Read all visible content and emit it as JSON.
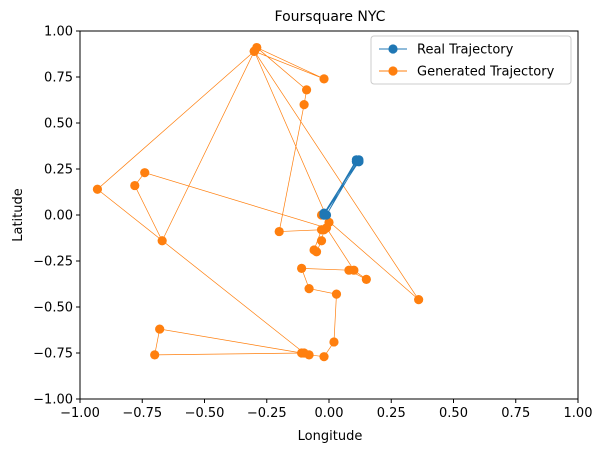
{
  "chart_data": {
    "type": "line",
    "title": "Foursquare NYC",
    "xlabel": "Longitude",
    "ylabel": "Latitude",
    "xlim": [
      -1.0,
      1.0
    ],
    "ylim": [
      -1.0,
      1.0
    ],
    "xticks": [
      "−1.00",
      "−0.75",
      "−0.50",
      "−0.25",
      "0.00",
      "0.25",
      "0.50",
      "0.75",
      "1.00"
    ],
    "yticks": [
      "−1.00",
      "−0.75",
      "−0.50",
      "−0.25",
      "0.00",
      "0.25",
      "0.50",
      "0.75",
      "1.00"
    ],
    "grid": false,
    "legend_position": "top-right",
    "series": [
      {
        "name": "Real Trajectory",
        "color": "#1f77b4",
        "points": [
          [
            -0.02,
            0.0
          ],
          [
            0.12,
            0.29
          ],
          [
            -0.02,
            0.0
          ],
          [
            0.11,
            0.29
          ],
          [
            -0.02,
            0.01
          ],
          [
            0.12,
            0.3
          ],
          [
            -0.01,
            0.0
          ],
          [
            0.11,
            0.3
          ],
          [
            -0.02,
            0.0
          ],
          [
            0.12,
            0.29
          ]
        ]
      },
      {
        "name": "Generated Trajectory",
        "color": "#ff7f0e",
        "points": [
          [
            -0.03,
            0.0
          ],
          [
            0.36,
            -0.46
          ],
          [
            -0.3,
            0.89
          ],
          [
            -0.02,
            0.74
          ],
          [
            -0.29,
            0.91
          ],
          [
            -0.09,
            0.68
          ],
          [
            -0.1,
            0.6
          ],
          [
            -0.2,
            -0.09
          ],
          [
            -0.03,
            -0.08
          ],
          [
            -0.06,
            -0.19
          ],
          [
            -0.05,
            -0.2
          ],
          [
            -0.03,
            -0.14
          ],
          [
            -0.02,
            -0.08
          ],
          [
            0.0,
            -0.04
          ],
          [
            -0.3,
            0.89
          ],
          [
            -0.67,
            -0.14
          ],
          [
            -0.78,
            0.16
          ],
          [
            -0.74,
            0.23
          ],
          [
            -0.01,
            -0.07
          ],
          [
            0.1,
            -0.3
          ],
          [
            0.15,
            -0.35
          ],
          [
            0.08,
            -0.3
          ],
          [
            -0.11,
            -0.29
          ],
          [
            -0.08,
            -0.4
          ],
          [
            0.03,
            -0.43
          ],
          [
            0.02,
            -0.69
          ],
          [
            -0.02,
            -0.77
          ],
          [
            -0.08,
            -0.76
          ],
          [
            -0.11,
            -0.75
          ],
          [
            -0.68,
            -0.62
          ],
          [
            -0.7,
            -0.76
          ],
          [
            -0.1,
            -0.75
          ],
          [
            -0.93,
            0.14
          ],
          [
            -0.3,
            0.89
          ]
        ]
      }
    ]
  }
}
